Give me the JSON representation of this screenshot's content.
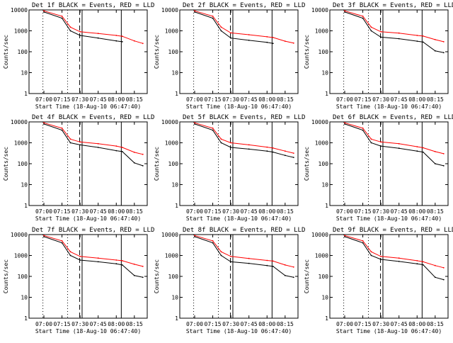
{
  "colors": {
    "background": "#ffffff",
    "axes": "#000000",
    "events": "#000000",
    "lld": "#ff0000"
  },
  "common": {
    "ylabel": "Counts/sec",
    "xlabel": "Start Time (18-Aug-10 06:47:40)",
    "x_ticks": [
      "07:00",
      "07:15",
      "07:30",
      "07:45",
      "08:00",
      "08:15"
    ],
    "y_ticks": [
      "10000",
      "1000",
      "100",
      "10",
      "1"
    ],
    "y_scale": "log",
    "ylim": [
      1,
      10000
    ]
  },
  "chart_data": [
    {
      "type": "line",
      "title": "Det 1f BLACK = Events, RED = LLD",
      "detector": "1f",
      "x": [
        "07:00",
        "07:15",
        "07:22",
        "07:30",
        "07:45",
        "08:00",
        "08:05",
        "08:15",
        "08:22"
      ],
      "series": [
        {
          "name": "BLACK = Events",
          "values": [
            8000,
            4000,
            1000,
            600,
            450,
            330,
            300,
            null,
            null
          ]
        },
        {
          "name": "RED = LLD",
          "values": [
            9000,
            5000,
            1500,
            900,
            750,
            600,
            550,
            330,
            250
          ]
        }
      ]
    },
    {
      "type": "line",
      "title": "Det 2f BLACK = Events, RED = LLD",
      "detector": "2f",
      "x": [
        "07:00",
        "07:15",
        "07:22",
        "07:30",
        "07:45",
        "08:00",
        "08:05",
        "08:15",
        "08:22"
      ],
      "series": [
        {
          "name": "BLACK = Events",
          "values": [
            8000,
            4000,
            1000,
            450,
            350,
            280,
            250,
            null,
            null
          ]
        },
        {
          "name": "RED = LLD",
          "values": [
            9000,
            5000,
            1500,
            800,
            650,
            520,
            480,
            320,
            260
          ]
        }
      ]
    },
    {
      "type": "line",
      "title": "Det 3f BLACK = Events, RED = LLD",
      "detector": "3f",
      "x": [
        "07:00",
        "07:15",
        "07:22",
        "07:30",
        "07:45",
        "08:00",
        "08:05",
        "08:15",
        "08:22"
      ],
      "series": [
        {
          "name": "BLACK = Events",
          "values": [
            8000,
            4000,
            1000,
            500,
            420,
            320,
            290,
            110,
            90
          ]
        },
        {
          "name": "RED = LLD",
          "values": [
            9000,
            5000,
            1500,
            900,
            780,
            600,
            560,
            380,
            300
          ]
        }
      ]
    },
    {
      "type": "line",
      "title": "Det 4f BLACK = Events, RED = LLD",
      "detector": "4f",
      "x": [
        "07:00",
        "07:15",
        "07:22",
        "07:30",
        "07:45",
        "08:00",
        "08:05",
        "08:15",
        "08:22"
      ],
      "series": [
        {
          "name": "BLACK = Events",
          "values": [
            8000,
            4000,
            1000,
            800,
            600,
            420,
            380,
            110,
            80
          ]
        },
        {
          "name": "RED = LLD",
          "values": [
            9000,
            5000,
            1500,
            1100,
            900,
            700,
            600,
            350,
            280
          ]
        }
      ]
    },
    {
      "type": "line",
      "title": "Det 5f BLACK = Events, RED = LLD",
      "detector": "5f",
      "x": [
        "07:00",
        "07:15",
        "07:22",
        "07:30",
        "07:45",
        "08:00",
        "08:05",
        "08:15",
        "08:22"
      ],
      "series": [
        {
          "name": "BLACK = Events",
          "values": [
            8000,
            4000,
            1000,
            600,
            500,
            400,
            360,
            250,
            200
          ]
        },
        {
          "name": "RED = LLD",
          "values": [
            9000,
            5000,
            1500,
            1000,
            800,
            620,
            560,
            400,
            320
          ]
        }
      ]
    },
    {
      "type": "line",
      "title": "Det 6f BLACK = Events, RED = LLD",
      "detector": "6f",
      "x": [
        "07:00",
        "07:15",
        "07:22",
        "07:30",
        "07:45",
        "08:00",
        "08:05",
        "08:15",
        "08:22"
      ],
      "series": [
        {
          "name": "BLACK = Events",
          "values": [
            8000,
            4000,
            1000,
            700,
            550,
            400,
            360,
            100,
            80
          ]
        },
        {
          "name": "RED = LLD",
          "values": [
            9000,
            5000,
            1500,
            1100,
            900,
            650,
            580,
            380,
            300
          ]
        }
      ]
    },
    {
      "type": "line",
      "title": "Det 7f BLACK = Events, RED = LLD",
      "detector": "7f",
      "x": [
        "07:00",
        "07:15",
        "07:22",
        "07:30",
        "07:45",
        "08:00",
        "08:05",
        "08:15",
        "08:22"
      ],
      "series": [
        {
          "name": "BLACK = Events",
          "values": [
            8000,
            4000,
            1000,
            600,
            500,
            400,
            350,
            110,
            90
          ]
        },
        {
          "name": "RED = LLD",
          "values": [
            9000,
            5000,
            1500,
            900,
            750,
            600,
            560,
            380,
            300
          ]
        }
      ]
    },
    {
      "type": "line",
      "title": "Det 8f BLACK = Events, RED = LLD",
      "detector": "8f",
      "x": [
        "07:00",
        "07:15",
        "07:22",
        "07:30",
        "07:45",
        "08:00",
        "08:05",
        "08:15",
        "08:22"
      ],
      "series": [
        {
          "name": "BLACK = Events",
          "values": [
            8000,
            4000,
            1000,
            500,
            420,
            330,
            300,
            110,
            90
          ]
        },
        {
          "name": "RED = LLD",
          "values": [
            9000,
            5000,
            1500,
            900,
            720,
            580,
            540,
            350,
            280
          ]
        }
      ]
    },
    {
      "type": "line",
      "title": "Det 9f BLACK = Events, RED = LLD",
      "detector": "9f",
      "x": [
        "07:00",
        "07:15",
        "07:22",
        "07:30",
        "07:45",
        "08:00",
        "08:05",
        "08:15",
        "08:22"
      ],
      "series": [
        {
          "name": "BLACK = Events",
          "values": [
            8000,
            4000,
            1000,
            650,
            520,
            400,
            360,
            90,
            70
          ]
        },
        {
          "name": "RED = LLD",
          "values": [
            9000,
            5000,
            1500,
            900,
            750,
            560,
            500,
            330,
            260
          ]
        }
      ]
    }
  ]
}
